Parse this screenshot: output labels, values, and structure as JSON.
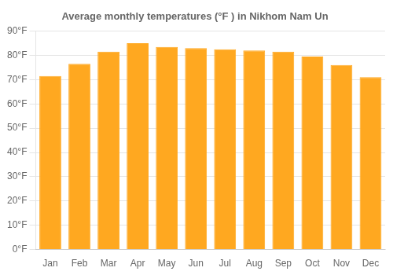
{
  "chart_data": {
    "type": "bar",
    "title": "Average monthly temperatures (°F ) in Nikhom Nam Un",
    "categories": [
      "Jan",
      "Feb",
      "Mar",
      "Apr",
      "May",
      "Jun",
      "Jul",
      "Aug",
      "Sep",
      "Oct",
      "Nov",
      "Dec"
    ],
    "values": [
      71.5,
      76.5,
      81.5,
      85.0,
      83.5,
      83.0,
      82.5,
      82.0,
      81.5,
      79.5,
      76.0,
      71.0
    ],
    "color": "#FFA820",
    "ylim": [
      0,
      90
    ],
    "yticks": [
      {
        "value": 0,
        "label": "0°F"
      },
      {
        "value": 10,
        "label": "10°F"
      },
      {
        "value": 20,
        "label": "20°F"
      },
      {
        "value": 30,
        "label": "30°F"
      },
      {
        "value": 40,
        "label": "40°F"
      },
      {
        "value": 50,
        "label": "50°F"
      },
      {
        "value": 60,
        "label": "60°F"
      },
      {
        "value": 70,
        "label": "70°F"
      },
      {
        "value": 80,
        "label": "80°F"
      },
      {
        "value": 90,
        "label": "90°F"
      }
    ],
    "grid": true
  }
}
